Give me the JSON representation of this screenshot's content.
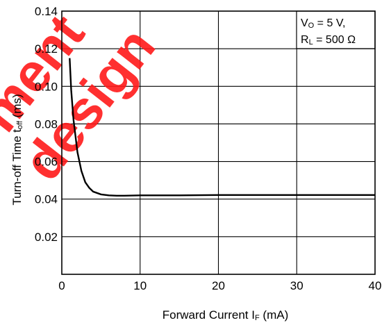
{
  "chart_data": {
    "type": "line",
    "title": "",
    "xlabel": {
      "main": "Forward Current  I",
      "sub": "F",
      "unit": " (mA)"
    },
    "ylabel": {
      "main": "Turn-off Time  t",
      "sub": "off",
      "unit": " (ms)"
    },
    "xlim": [
      0,
      40
    ],
    "ylim": [
      0,
      0.14
    ],
    "xticks": [
      0,
      10,
      20,
      30,
      40
    ],
    "xtick_labels": [
      "0",
      "10",
      "20",
      "30",
      "40"
    ],
    "yticks": [
      0.02,
      0.04,
      0.06,
      0.08,
      0.1,
      0.12,
      0.14
    ],
    "ytick_labels": [
      "0.02",
      "0.04",
      "0.06",
      "0.08",
      "0.10",
      "0.12",
      "0.14"
    ],
    "grid": true,
    "legend_placement": "top-right",
    "conditions": [
      {
        "main": "V",
        "sub": "O",
        "rest": " = 5 V,"
      },
      {
        "main": "R",
        "sub": "L",
        "rest": " = 500 Ω"
      }
    ],
    "series": [
      {
        "x": [
          1.0,
          1.2,
          1.5,
          2.0,
          2.5,
          3.0,
          3.5,
          4.0,
          5.0,
          6.0,
          7.0,
          8.0,
          10.0,
          15.0,
          20.0,
          25.0,
          30.0,
          35.0,
          40.0
        ],
        "y": [
          0.115,
          0.098,
          0.082,
          0.065,
          0.055,
          0.049,
          0.046,
          0.044,
          0.0425,
          0.042,
          0.0418,
          0.0418,
          0.042,
          0.042,
          0.0422,
          0.0422,
          0.0422,
          0.0422,
          0.0422
        ]
      }
    ],
    "color": "#000000"
  },
  "watermark": {
    "lines": [
      "ment",
      "design"
    ],
    "color": "#ff1a1a"
  }
}
